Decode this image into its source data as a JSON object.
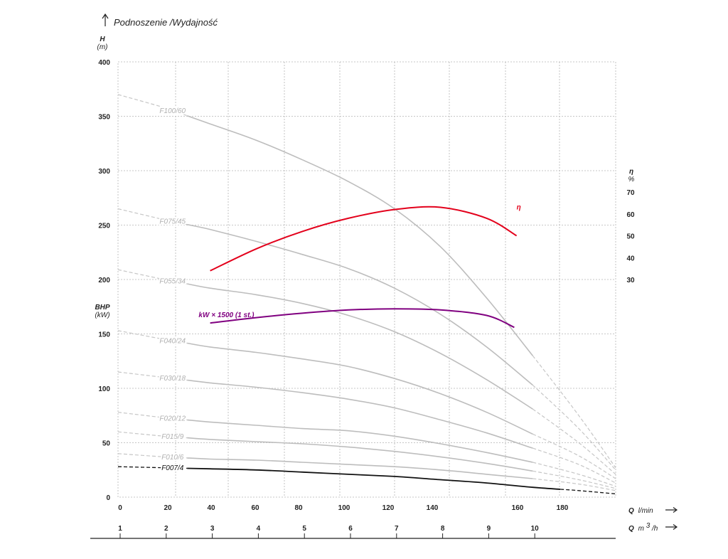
{
  "chart_data": {
    "type": "line",
    "title": "Podnoszenie /Wydajność",
    "grid": true,
    "y_axis": {
      "label": "H",
      "unit": "(m)",
      "range": [
        0,
        400
      ],
      "ticks": [
        0,
        50,
        100,
        150,
        200,
        250,
        300,
        350,
        400
      ],
      "second_label": "BHP",
      "second_unit": "(kW)"
    },
    "y_axis_right": {
      "label": "η",
      "unit": "%",
      "ticks": [
        30,
        40,
        50,
        60,
        70
      ]
    },
    "x_axis": {
      "label_q": "Q",
      "unit": "l/min",
      "range": [
        0,
        216
      ],
      "tick_labels": [
        "0",
        "20",
        "40",
        "60",
        "80",
        "100",
        "120",
        "140",
        "160",
        "180"
      ],
      "tick_values": [
        0,
        20,
        40,
        60,
        80,
        100,
        120,
        140,
        160,
        180
      ]
    },
    "x_axis_2": {
      "label_q": "Q",
      "unit": "m",
      "unit_sup": "3",
      "unit_suffix": "/h",
      "tick_labels": [
        "1",
        "2",
        "3",
        "4",
        "5",
        "6",
        "7",
        "8",
        "9",
        "10"
      ],
      "tick_values": [
        1,
        2,
        3,
        4,
        5,
        6,
        7,
        8,
        9,
        10
      ]
    },
    "series": [
      {
        "name": "F100/60",
        "color": "#bdbdbd",
        "label_at": 24,
        "solid_from": 30,
        "solid_to": 180,
        "points": [
          [
            0,
            370
          ],
          [
            20,
            358
          ],
          [
            40,
            343
          ],
          [
            60,
            328
          ],
          [
            80,
            310
          ],
          [
            100,
            290
          ],
          [
            120,
            265
          ],
          [
            140,
            230
          ],
          [
            160,
            183
          ],
          [
            180,
            130
          ],
          [
            200,
            75
          ],
          [
            216,
            27
          ]
        ]
      },
      {
        "name": "F075/45",
        "color": "#bdbdbd",
        "label_at": 24,
        "solid_from": 30,
        "solid_to": 180,
        "points": [
          [
            0,
            265
          ],
          [
            20,
            255
          ],
          [
            40,
            246
          ],
          [
            60,
            235
          ],
          [
            80,
            223
          ],
          [
            100,
            210
          ],
          [
            120,
            192
          ],
          [
            140,
            168
          ],
          [
            160,
            138
          ],
          [
            180,
            103
          ],
          [
            200,
            63
          ],
          [
            216,
            25
          ]
        ]
      },
      {
        "name": "F055/34",
        "color": "#bdbdbd",
        "label_at": 24,
        "solid_from": 30,
        "solid_to": 180,
        "points": [
          [
            0,
            209
          ],
          [
            20,
            200
          ],
          [
            40,
            192
          ],
          [
            60,
            186
          ],
          [
            80,
            178
          ],
          [
            100,
            167
          ],
          [
            120,
            152
          ],
          [
            140,
            132
          ],
          [
            160,
            108
          ],
          [
            180,
            81
          ],
          [
            200,
            50
          ],
          [
            216,
            21
          ]
        ]
      },
      {
        "name": "F040/24",
        "color": "#bdbdbd",
        "label_at": 24,
        "solid_from": 30,
        "solid_to": 180,
        "points": [
          [
            0,
            153
          ],
          [
            20,
            145
          ],
          [
            40,
            138
          ],
          [
            60,
            133
          ],
          [
            80,
            127
          ],
          [
            100,
            120
          ],
          [
            120,
            109
          ],
          [
            140,
            95
          ],
          [
            160,
            78
          ],
          [
            180,
            58
          ],
          [
            200,
            38
          ],
          [
            216,
            17
          ]
        ]
      },
      {
        "name": "F030/18",
        "color": "#bdbdbd",
        "label_at": 24,
        "solid_from": 30,
        "solid_to": 180,
        "points": [
          [
            0,
            115
          ],
          [
            20,
            110
          ],
          [
            40,
            105
          ],
          [
            60,
            101
          ],
          [
            80,
            96
          ],
          [
            100,
            90
          ],
          [
            120,
            82
          ],
          [
            140,
            71
          ],
          [
            160,
            59
          ],
          [
            180,
            45
          ],
          [
            200,
            30
          ],
          [
            216,
            13
          ]
        ]
      },
      {
        "name": "F020/12",
        "color": "#bdbdbd",
        "label_at": 24,
        "solid_from": 30,
        "solid_to": 180,
        "points": [
          [
            0,
            78
          ],
          [
            20,
            73
          ],
          [
            40,
            69
          ],
          [
            60,
            66
          ],
          [
            80,
            63
          ],
          [
            100,
            61
          ],
          [
            120,
            56
          ],
          [
            140,
            49
          ],
          [
            160,
            41
          ],
          [
            180,
            32
          ],
          [
            200,
            21
          ],
          [
            216,
            10
          ]
        ]
      },
      {
        "name": "F015/9",
        "color": "#bdbdbd",
        "label_at": 24,
        "solid_from": 30,
        "solid_to": 180,
        "points": [
          [
            0,
            60
          ],
          [
            20,
            56
          ],
          [
            40,
            53
          ],
          [
            60,
            51
          ],
          [
            80,
            49
          ],
          [
            100,
            46
          ],
          [
            120,
            42
          ],
          [
            140,
            37
          ],
          [
            160,
            31
          ],
          [
            180,
            24
          ],
          [
            200,
            16
          ],
          [
            216,
            8
          ]
        ]
      },
      {
        "name": "F010/6",
        "color": "#bdbdbd",
        "label_at": 24,
        "solid_from": 30,
        "solid_to": 180,
        "points": [
          [
            0,
            40
          ],
          [
            20,
            37
          ],
          [
            40,
            35
          ],
          [
            60,
            34
          ],
          [
            80,
            32
          ],
          [
            100,
            30
          ],
          [
            120,
            28
          ],
          [
            140,
            25
          ],
          [
            160,
            21
          ],
          [
            180,
            17
          ],
          [
            200,
            12
          ],
          [
            216,
            6
          ]
        ]
      },
      {
        "name": "F007/4",
        "color": "#111111",
        "label_at": 24,
        "solid_from": 30,
        "solid_to": 192,
        "points": [
          [
            0,
            28
          ],
          [
            20,
            27
          ],
          [
            40,
            26
          ],
          [
            60,
            25
          ],
          [
            80,
            23
          ],
          [
            100,
            21
          ],
          [
            120,
            19
          ],
          [
            140,
            16
          ],
          [
            160,
            13
          ],
          [
            180,
            9
          ],
          [
            200,
            6
          ],
          [
            216,
            3
          ]
        ]
      },
      {
        "name": "η",
        "color": "#e3001b",
        "axis": "right",
        "label_xy": [
          173,
          62
        ],
        "points": [
          [
            40,
            34
          ],
          [
            60,
            44
          ],
          [
            80,
            52
          ],
          [
            100,
            58
          ],
          [
            120,
            62
          ],
          [
            140,
            63
          ],
          [
            160,
            58
          ],
          [
            173,
            50
          ]
        ]
      },
      {
        "name": "kW × 1500 (1 st.)",
        "color": "#800080",
        "label_xy": [
          35,
          168
        ],
        "points": [
          [
            40,
            160
          ],
          [
            60,
            165
          ],
          [
            80,
            169
          ],
          [
            100,
            172
          ],
          [
            120,
            173
          ],
          [
            140,
            172
          ],
          [
            160,
            167
          ],
          [
            172,
            156
          ]
        ]
      }
    ]
  }
}
